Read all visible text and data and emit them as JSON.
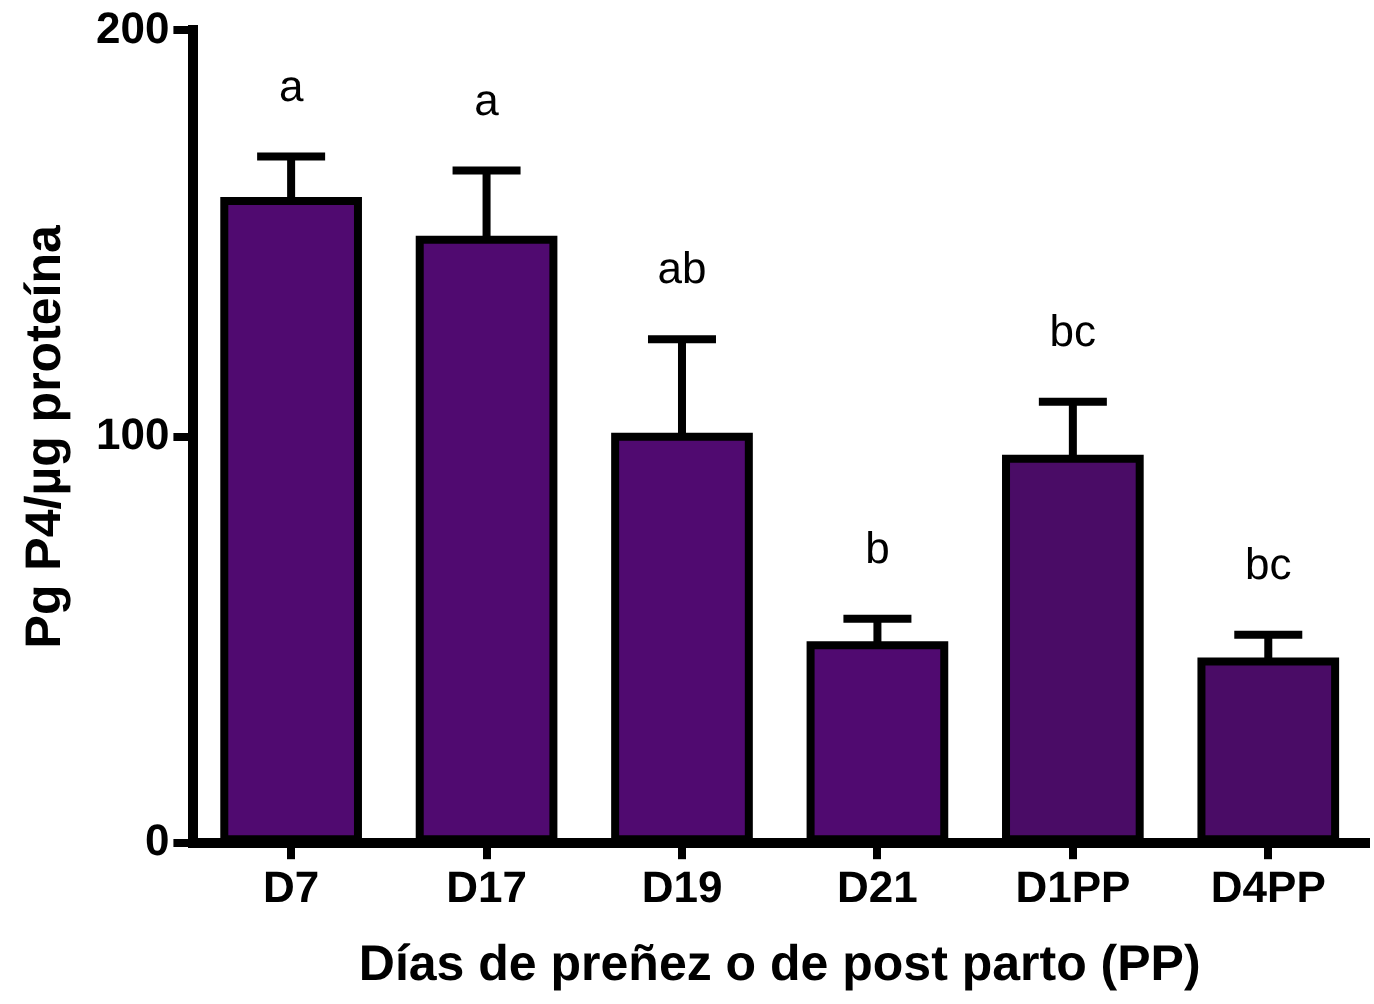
{
  "chart_data": {
    "type": "bar",
    "xlabel": "Días de preñez o de post parto (PP)",
    "ylabel": "Pg P4/µg proteína",
    "categories": [
      "D7",
      "D17",
      "D19",
      "D21",
      "D1PP",
      "D4PP"
    ],
    "values": [
      158,
      148.5,
      100,
      48.7,
      94.6,
      44.7
    ],
    "errors": [
      [
        158,
        169
      ],
      [
        148.5,
        165.5
      ],
      [
        100,
        124
      ],
      [
        48.7,
        55.2
      ],
      [
        94.6,
        108.6
      ],
      [
        44.7,
        51.3
      ]
    ],
    "colors": [
      "#500a70",
      "#500a70",
      "#500a70",
      "#500a70",
      "#4a0c66",
      "#4a0c66"
    ],
    "ylim": [
      0,
      200
    ],
    "yticks": [
      0,
      100,
      200
    ],
    "grid": false,
    "legend": false,
    "annotations": [
      "a",
      "a",
      "ab",
      "b",
      "bc",
      "bc"
    ]
  }
}
